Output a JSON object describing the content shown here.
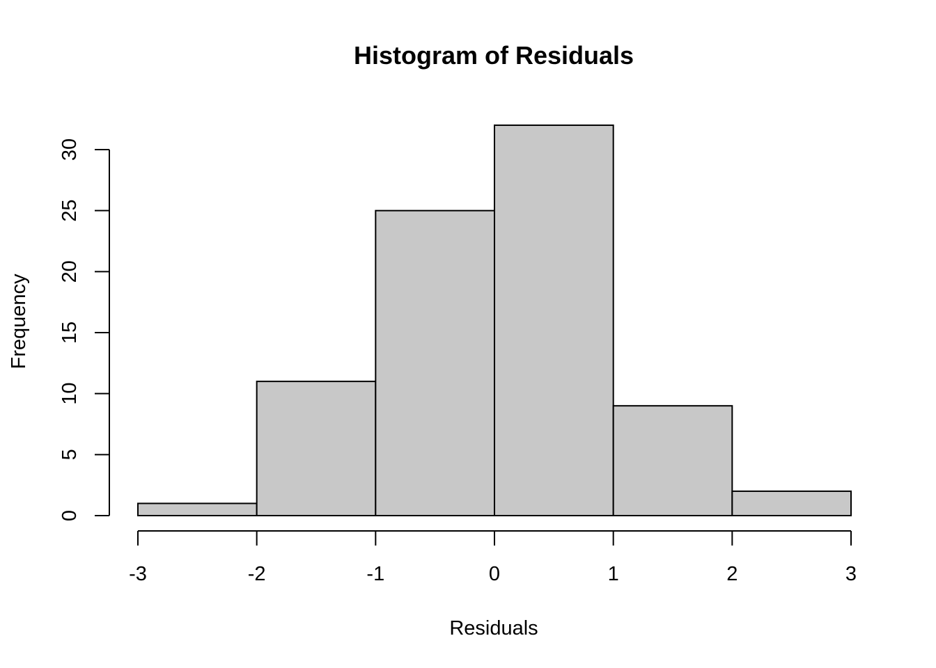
{
  "chart_data": {
    "type": "bar",
    "title": "Histogram of Residuals",
    "xlabel": "Residuals",
    "ylabel": "Frequency",
    "bins": [
      {
        "start": -3,
        "end": -2,
        "count": 1
      },
      {
        "start": -2,
        "end": -1,
        "count": 11
      },
      {
        "start": -1,
        "end": 0,
        "count": 25
      },
      {
        "start": 0,
        "end": 1,
        "count": 32
      },
      {
        "start": 1,
        "end": 2,
        "count": 9
      },
      {
        "start": 2,
        "end": 3,
        "count": 2
      }
    ],
    "xlim": [
      -3,
      3
    ],
    "ylim": [
      0,
      30
    ],
    "x_ticks": [
      "-3",
      "-2",
      "-1",
      "0",
      "1",
      "2",
      "3"
    ],
    "y_ticks": [
      "0",
      "5",
      "10",
      "15",
      "20",
      "25",
      "30"
    ],
    "bar_color": "#c8c8c8",
    "grid": false
  }
}
